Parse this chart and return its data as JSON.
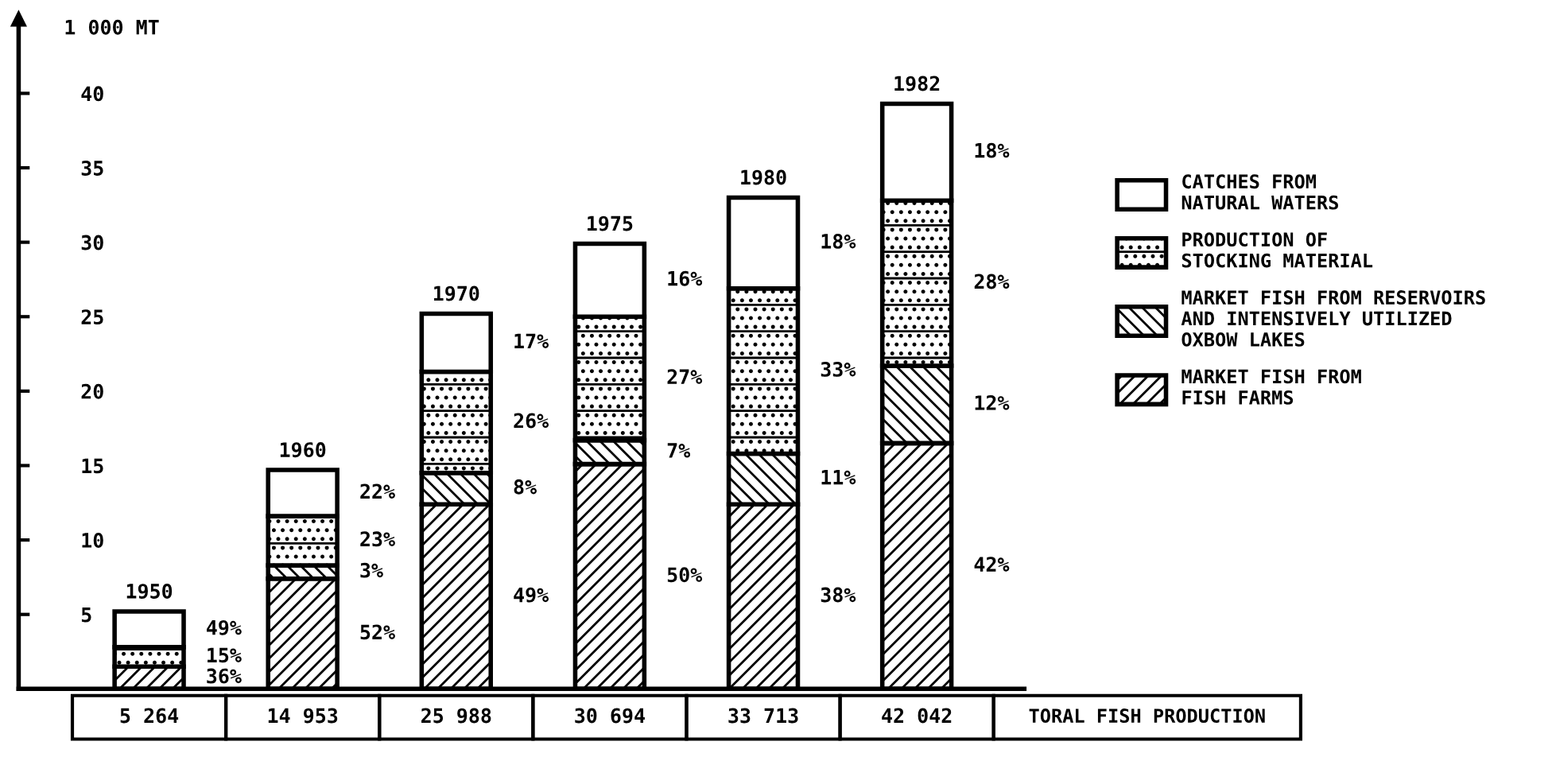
{
  "chart_data": {
    "type": "bar",
    "stacked": true,
    "ylabel": "1 000 MT",
    "categories": [
      "1950",
      "1960",
      "1970",
      "1975",
      "1980",
      "1982"
    ],
    "series": [
      {
        "name": "MARKET FISH FROM\nFISH FARMS",
        "color": "#000000",
        "values": [
          1.5,
          7.4,
          12.4,
          15.1,
          12.4,
          16.5
        ]
      },
      {
        "name": "MARKET FISH FROM RESERVOIRS\nAND INTENSIVELY UTILIZED\nOXBOW LAKES",
        "color": "#000000",
        "values": [
          null,
          0.9,
          2.1,
          1.6,
          3.4,
          5.2
        ]
      },
      {
        "name": "PRODUCTION OF\nSTOCKING MATERIAL",
        "color": "#000000",
        "values": [
          1.3,
          3.3,
          6.8,
          8.3,
          11.1,
          11.1
        ]
      },
      {
        "name": "CATCHES FROM\nNATURAL WATERS",
        "color": "#ffffff",
        "values": [
          2.4,
          3.1,
          3.9,
          4.9,
          6.1,
          6.5
        ]
      }
    ],
    "annotations": [
      "5 264",
      "14 953",
      "25 988",
      "30 694",
      "33 713",
      "42 042",
      "TORAL FISH PRODUCTION",
      "49%",
      "15%",
      "36%",
      "22%",
      "23%",
      "3%",
      "52%",
      "17%",
      "26%",
      "8%",
      "49%",
      "16%",
      "27%",
      "7%",
      "50%",
      "18%",
      "33%",
      "11%",
      "38%",
      "18%",
      "28%",
      "12%",
      "42%"
    ],
    "ylim": [
      0,
      45
    ],
    "yticks": [
      5,
      10,
      15,
      20,
      25,
      30,
      35,
      40
    ],
    "grid": false,
    "legend": "right"
  }
}
